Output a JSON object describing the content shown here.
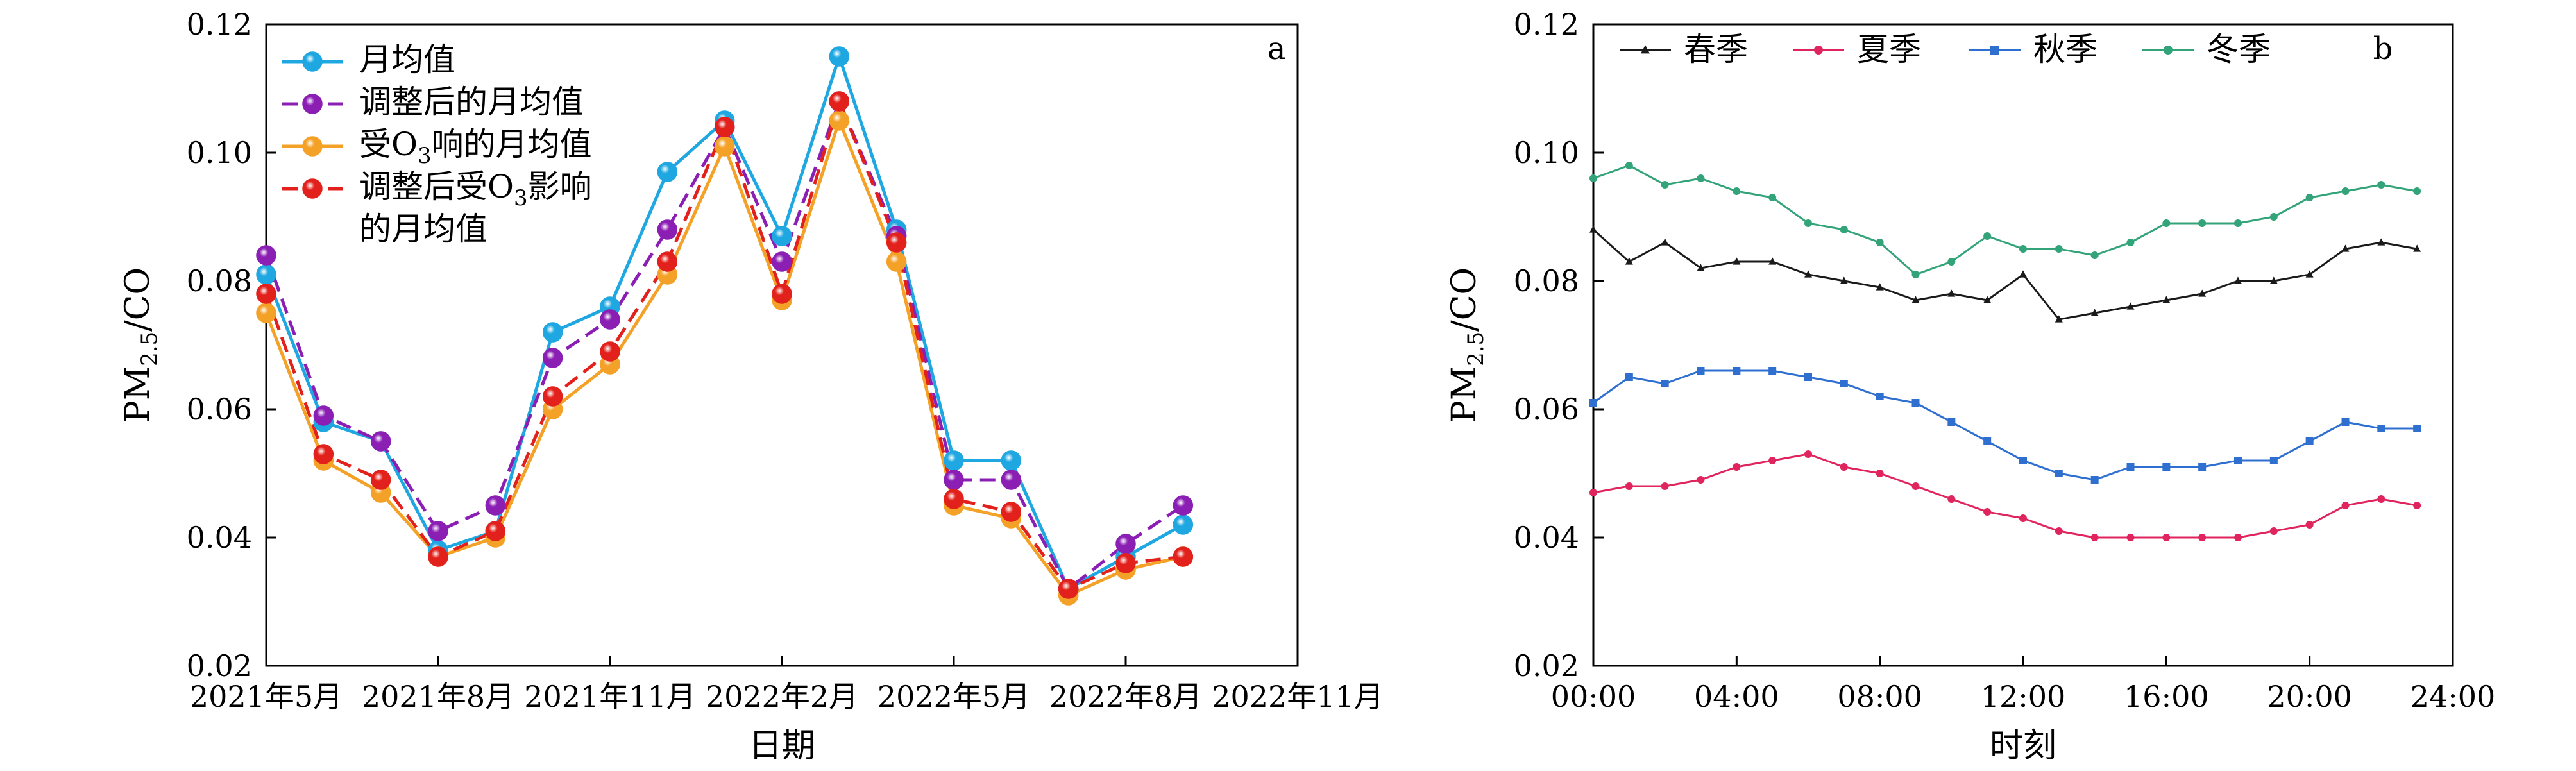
{
  "chart_data": [
    {
      "type": "line",
      "panel_label": "a",
      "xlabel": "日期",
      "ylabel": {
        "main": "PM",
        "sub": "2.5",
        "tail": "/CO"
      },
      "ylim": [
        0.02,
        0.12
      ],
      "yticks": [
        "0.02",
        "0.04",
        "0.06",
        "0.08",
        "0.10",
        "0.12"
      ],
      "xlim": [
        0,
        18
      ],
      "xticks": [
        {
          "pos": 0,
          "label": "2021年5月"
        },
        {
          "pos": 3,
          "label": "2021年8月"
        },
        {
          "pos": 6,
          "label": "2021年11月"
        },
        {
          "pos": 9,
          "label": "2022年2月"
        },
        {
          "pos": 12,
          "label": "2022年5月"
        },
        {
          "pos": 15,
          "label": "2022年8月"
        },
        {
          "pos": 18,
          "label": "2022年11月"
        }
      ],
      "legend_position": "top-left",
      "x": [
        0,
        1,
        2,
        3,
        4,
        5,
        6,
        7,
        8,
        9,
        10,
        11,
        12,
        13,
        14,
        15,
        16
      ],
      "series": [
        {
          "name": "月均值",
          "name_lines": [
            [
              {
                "t": "月均值"
              }
            ]
          ],
          "color": "#1ea7e1",
          "dash": "solid",
          "values": [
            0.081,
            0.058,
            0.055,
            0.038,
            0.041,
            0.072,
            0.076,
            0.097,
            0.105,
            0.087,
            0.115,
            0.088,
            0.052,
            0.052,
            0.032,
            0.037,
            0.042
          ]
        },
        {
          "name": "调整后的月均值",
          "name_lines": [
            [
              {
                "t": "调整后的月均值"
              }
            ]
          ],
          "color": "#8b1fb4",
          "dash": "dashed",
          "values": [
            0.084,
            0.059,
            0.055,
            0.041,
            0.045,
            0.068,
            0.074,
            0.088,
            0.104,
            0.083,
            0.108,
            0.087,
            0.049,
            0.049,
            0.032,
            0.039,
            0.045
          ]
        },
        {
          "name": "受O3响的月均值",
          "name_lines": [
            [
              {
                "t": "受O"
              },
              {
                "t": "3",
                "sub": true
              },
              {
                "t": "响的月均值"
              }
            ]
          ],
          "color": "#f4a127",
          "dash": "solid",
          "values": [
            0.075,
            0.052,
            0.047,
            0.037,
            0.04,
            0.06,
            0.067,
            0.081,
            0.101,
            0.077,
            0.105,
            0.083,
            0.045,
            0.043,
            0.031,
            0.035,
            0.037
          ]
        },
        {
          "name": "调整后受O3影响的月均值",
          "name_lines": [
            [
              {
                "t": "调整后受O"
              },
              {
                "t": "3",
                "sub": true
              },
              {
                "t": "影响"
              }
            ],
            [
              {
                "t": "的月均值"
              }
            ]
          ],
          "color": "#e3211c",
          "dash": "dashed",
          "values": [
            0.078,
            0.053,
            0.049,
            0.037,
            0.041,
            0.062,
            0.069,
            0.083,
            0.104,
            0.078,
            0.108,
            0.086,
            0.046,
            0.044,
            0.032,
            0.036,
            0.037
          ]
        }
      ]
    },
    {
      "type": "line",
      "panel_label": "b",
      "xlabel": "时刻",
      "ylabel": {
        "main": "PM",
        "sub": "2.5",
        "tail": "/CO"
      },
      "ylim": [
        0.02,
        0.12
      ],
      "yticks": [
        "0.02",
        "0.04",
        "0.06",
        "0.08",
        "0.10",
        "0.12"
      ],
      "xlim": [
        0,
        24
      ],
      "xticks": [
        {
          "pos": 0,
          "label": "00:00"
        },
        {
          "pos": 4,
          "label": "04:00"
        },
        {
          "pos": 8,
          "label": "08:00"
        },
        {
          "pos": 12,
          "label": "12:00"
        },
        {
          "pos": 16,
          "label": "16:00"
        },
        {
          "pos": 20,
          "label": "20:00"
        },
        {
          "pos": 24,
          "label": "24:00"
        }
      ],
      "legend_position": "top",
      "x": [
        0,
        1,
        2,
        3,
        4,
        5,
        6,
        7,
        8,
        9,
        10,
        11,
        12,
        13,
        14,
        15,
        16,
        17,
        18,
        19,
        20,
        21,
        22,
        23
      ],
      "series": [
        {
          "name": "春季",
          "color": "#1a1a1a",
          "marker": "triangle",
          "values": [
            0.088,
            0.083,
            0.086,
            0.082,
            0.083,
            0.083,
            0.081,
            0.08,
            0.079,
            0.077,
            0.078,
            0.077,
            0.081,
            0.074,
            0.075,
            0.076,
            0.077,
            0.078,
            0.08,
            0.08,
            0.081,
            0.085,
            0.086,
            0.085
          ]
        },
        {
          "name": "夏季",
          "color": "#e0245e",
          "marker": "dot",
          "values": [
            0.047,
            0.048,
            0.048,
            0.049,
            0.051,
            0.052,
            0.053,
            0.051,
            0.05,
            0.048,
            0.046,
            0.044,
            0.043,
            0.041,
            0.04,
            0.04,
            0.04,
            0.04,
            0.04,
            0.041,
            0.042,
            0.045,
            0.046,
            0.045
          ]
        },
        {
          "name": "秋季",
          "color": "#2f6fd0",
          "marker": "square",
          "values": [
            0.061,
            0.065,
            0.064,
            0.066,
            0.066,
            0.066,
            0.065,
            0.064,
            0.062,
            0.061,
            0.058,
            0.055,
            0.052,
            0.05,
            0.049,
            0.051,
            0.051,
            0.051,
            0.052,
            0.052,
            0.055,
            0.058,
            0.057,
            0.057
          ]
        },
        {
          "name": "冬季",
          "color": "#33a37a",
          "marker": "dot",
          "values": [
            0.096,
            0.098,
            0.095,
            0.096,
            0.094,
            0.093,
            0.089,
            0.088,
            0.086,
            0.081,
            0.083,
            0.087,
            0.085,
            0.085,
            0.084,
            0.086,
            0.089,
            0.089,
            0.089,
            0.09,
            0.093,
            0.094,
            0.095,
            0.094
          ]
        }
      ]
    }
  ]
}
